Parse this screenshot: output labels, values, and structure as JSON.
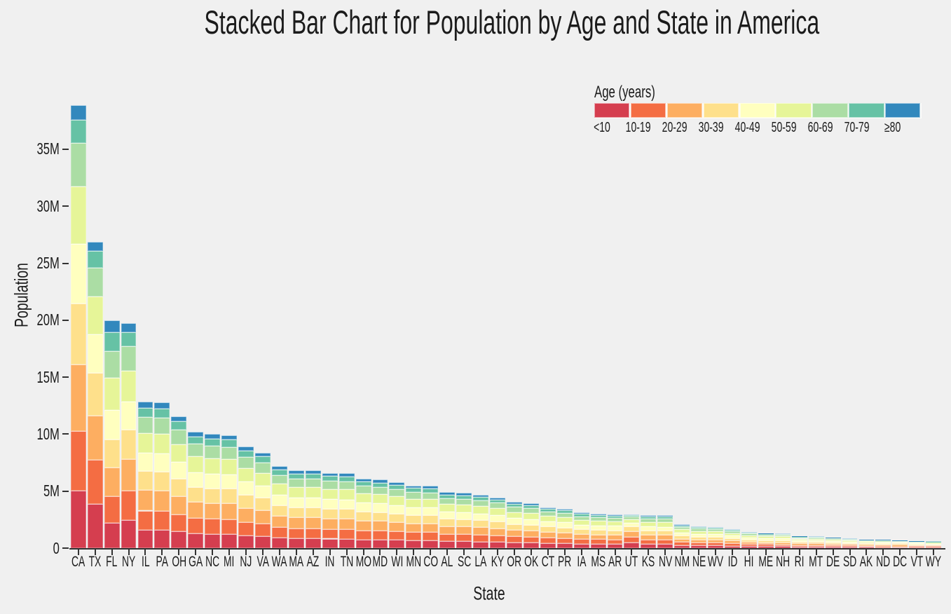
{
  "title": "Stacked Bar Chart for Population by Age and State in America",
  "legend": {
    "title": "Age (years)"
  },
  "axes": {
    "x_title": "State",
    "y_title": "Population",
    "y_tick_labels": [
      "0",
      "5M",
      "10M",
      "15M",
      "20M",
      "25M",
      "30M",
      "35M"
    ],
    "y_tick_values_M": [
      0,
      5,
      10,
      15,
      20,
      25,
      30,
      35
    ]
  },
  "colors": {
    "background": "#f0f0f0",
    "axis": "#333333",
    "text": "#1b1b1b",
    "palette": [
      "#d53e4f",
      "#f46d43",
      "#fdae61",
      "#fee08b",
      "#ffffbf",
      "#e6f598",
      "#abdda4",
      "#66c2a5",
      "#3288bd"
    ]
  },
  "chart_data": {
    "type": "bar",
    "stacked": true,
    "title": "Stacked Bar Chart for Population by Age and State in America",
    "xlabel": "State",
    "ylabel": "Population",
    "unit": "millions of people",
    "grid": false,
    "legend_title": "Age (years)",
    "legend_position": "top-right",
    "ylim": [
      0,
      40
    ],
    "ytick_step_M": 5,
    "age_groups": [
      "<10",
      "10-19",
      "20-29",
      "30-39",
      "40-49",
      "50-59",
      "60-69",
      "70-79",
      "≥80"
    ],
    "categories": [
      "CA",
      "TX",
      "FL",
      "NY",
      "IL",
      "PA",
      "OH",
      "GA",
      "NC",
      "MI",
      "NJ",
      "VA",
      "WA",
      "MA",
      "AZ",
      "IN",
      "TN",
      "MO",
      "MD",
      "WI",
      "MN",
      "CO",
      "AL",
      "SC",
      "LA",
      "KY",
      "OR",
      "OK",
      "CT",
      "PR",
      "IA",
      "MS",
      "AR",
      "UT",
      "KS",
      "NV",
      "NM",
      "NE",
      "WV",
      "ID",
      "HI",
      "ME",
      "NH",
      "RI",
      "MT",
      "DE",
      "SD",
      "AK",
      "ND",
      "DC",
      "VT",
      "WY"
    ],
    "series": [
      {
        "name": "<10",
        "values": [
          5.05,
          3.9,
          2.2,
          2.47,
          1.61,
          1.6,
          1.45,
          1.28,
          1.25,
          1.24,
          1.12,
          1.05,
          0.9,
          0.85,
          0.85,
          0.83,
          0.82,
          0.76,
          0.75,
          0.72,
          0.69,
          0.68,
          0.61,
          0.6,
          0.58,
          0.55,
          0.5,
          0.49,
          0.45,
          0.43,
          0.39,
          0.38,
          0.37,
          0.49,
          0.36,
          0.36,
          0.26,
          0.24,
          0.23,
          0.21,
          0.18,
          0.17,
          0.16,
          0.13,
          0.13,
          0.12,
          0.11,
          0.1,
          0.09,
          0.08,
          0.08,
          0.08
        ]
      },
      {
        "name": "10-19",
        "values": [
          5.24,
          3.85,
          2.36,
          2.59,
          1.68,
          1.67,
          1.52,
          1.34,
          1.31,
          1.3,
          1.17,
          1.1,
          0.94,
          0.89,
          0.89,
          0.86,
          0.86,
          0.8,
          0.79,
          0.76,
          0.72,
          0.71,
          0.64,
          0.63,
          0.61,
          0.58,
          0.53,
          0.51,
          0.47,
          0.45,
          0.41,
          0.39,
          0.39,
          0.49,
          0.38,
          0.38,
          0.27,
          0.25,
          0.24,
          0.22,
          0.19,
          0.17,
          0.17,
          0.14,
          0.13,
          0.12,
          0.11,
          0.1,
          0.09,
          0.07,
          0.08,
          0.08
        ]
      },
      {
        "name": "20-29",
        "values": [
          5.83,
          3.9,
          2.54,
          2.75,
          1.79,
          1.78,
          1.61,
          1.42,
          1.39,
          1.38,
          1.24,
          1.16,
          1.0,
          0.95,
          0.95,
          0.92,
          0.91,
          0.85,
          0.83,
          0.8,
          0.76,
          0.76,
          0.68,
          0.67,
          0.65,
          0.62,
          0.56,
          0.54,
          0.5,
          0.48,
          0.43,
          0.42,
          0.41,
          0.51,
          0.4,
          0.4,
          0.29,
          0.26,
          0.26,
          0.23,
          0.2,
          0.18,
          0.18,
          0.15,
          0.14,
          0.13,
          0.12,
          0.11,
          0.11,
          0.13,
          0.09,
          0.08
        ]
      },
      {
        "name": "30-39",
        "values": [
          5.34,
          3.7,
          2.46,
          2.57,
          1.67,
          1.66,
          1.51,
          1.33,
          1.3,
          1.29,
          1.16,
          1.09,
          0.93,
          0.89,
          0.88,
          0.86,
          0.85,
          0.79,
          0.78,
          0.75,
          0.71,
          0.71,
          0.64,
          0.63,
          0.61,
          0.58,
          0.52,
          0.51,
          0.47,
          0.45,
          0.41,
          0.39,
          0.39,
          0.41,
          0.38,
          0.37,
          0.27,
          0.25,
          0.24,
          0.21,
          0.19,
          0.17,
          0.17,
          0.14,
          0.13,
          0.12,
          0.11,
          0.1,
          0.1,
          0.12,
          0.08,
          0.08
        ]
      },
      {
        "name": "40-49",
        "values": [
          5.21,
          3.4,
          2.58,
          2.49,
          1.62,
          1.61,
          1.46,
          1.29,
          1.26,
          1.25,
          1.13,
          1.06,
          0.9,
          0.86,
          0.86,
          0.83,
          0.83,
          0.77,
          0.76,
          0.73,
          0.69,
          0.69,
          0.62,
          0.61,
          0.59,
          0.56,
          0.51,
          0.49,
          0.45,
          0.44,
          0.39,
          0.38,
          0.38,
          0.33,
          0.37,
          0.36,
          0.26,
          0.24,
          0.23,
          0.21,
          0.18,
          0.17,
          0.17,
          0.13,
          0.13,
          0.12,
          0.11,
          0.09,
          0.09,
          0.09,
          0.08,
          0.07
        ]
      },
      {
        "name": "50-59",
        "values": [
          5.07,
          3.3,
          2.81,
          2.67,
          1.74,
          1.73,
          1.56,
          1.38,
          1.35,
          1.34,
          1.21,
          1.13,
          0.97,
          0.92,
          0.92,
          0.89,
          0.88,
          0.82,
          0.81,
          0.78,
          0.74,
          0.74,
          0.66,
          0.65,
          0.63,
          0.6,
          0.54,
          0.53,
          0.48,
          0.47,
          0.42,
          0.41,
          0.4,
          0.31,
          0.39,
          0.39,
          0.28,
          0.26,
          0.25,
          0.22,
          0.19,
          0.18,
          0.18,
          0.14,
          0.14,
          0.13,
          0.11,
          0.1,
          0.1,
          0.08,
          0.09,
          0.08
        ]
      },
      {
        "name": "60-69",
        "values": [
          3.79,
          2.55,
          2.35,
          2.15,
          1.4,
          1.39,
          1.26,
          1.11,
          1.09,
          1.08,
          0.97,
          0.91,
          0.78,
          0.74,
          0.74,
          0.72,
          0.71,
          0.66,
          0.65,
          0.63,
          0.6,
          0.59,
          0.53,
          0.53,
          0.51,
          0.48,
          0.44,
          0.43,
          0.39,
          0.38,
          0.34,
          0.33,
          0.32,
          0.23,
          0.32,
          0.31,
          0.23,
          0.21,
          0.2,
          0.18,
          0.16,
          0.14,
          0.14,
          0.12,
          0.11,
          0.1,
          0.09,
          0.08,
          0.08,
          0.06,
          0.07,
          0.07
        ]
      },
      {
        "name": "70-79",
        "values": [
          2.02,
          1.45,
          1.65,
          1.26,
          0.82,
          0.82,
          0.74,
          0.65,
          0.64,
          0.63,
          0.57,
          0.54,
          0.46,
          0.44,
          0.44,
          0.42,
          0.42,
          0.39,
          0.38,
          0.37,
          0.35,
          0.35,
          0.31,
          0.31,
          0.3,
          0.28,
          0.26,
          0.25,
          0.23,
          0.22,
          0.2,
          0.19,
          0.19,
          0.12,
          0.19,
          0.18,
          0.13,
          0.12,
          0.12,
          0.11,
          0.09,
          0.09,
          0.08,
          0.07,
          0.07,
          0.06,
          0.06,
          0.04,
          0.05,
          0.03,
          0.04,
          0.03
        ]
      },
      {
        "name": "≥80",
        "values": [
          1.31,
          0.85,
          1.05,
          0.81,
          0.53,
          0.52,
          0.48,
          0.42,
          0.41,
          0.41,
          0.37,
          0.34,
          0.29,
          0.28,
          0.28,
          0.27,
          0.27,
          0.25,
          0.25,
          0.24,
          0.23,
          0.22,
          0.2,
          0.2,
          0.19,
          0.18,
          0.17,
          0.16,
          0.15,
          0.14,
          0.13,
          0.12,
          0.12,
          0.06,
          0.12,
          0.12,
          0.09,
          0.08,
          0.08,
          0.07,
          0.06,
          0.05,
          0.05,
          0.04,
          0.04,
          0.04,
          0.04,
          0.02,
          0.03,
          0.02,
          0.02,
          0.02
        ]
      }
    ]
  }
}
